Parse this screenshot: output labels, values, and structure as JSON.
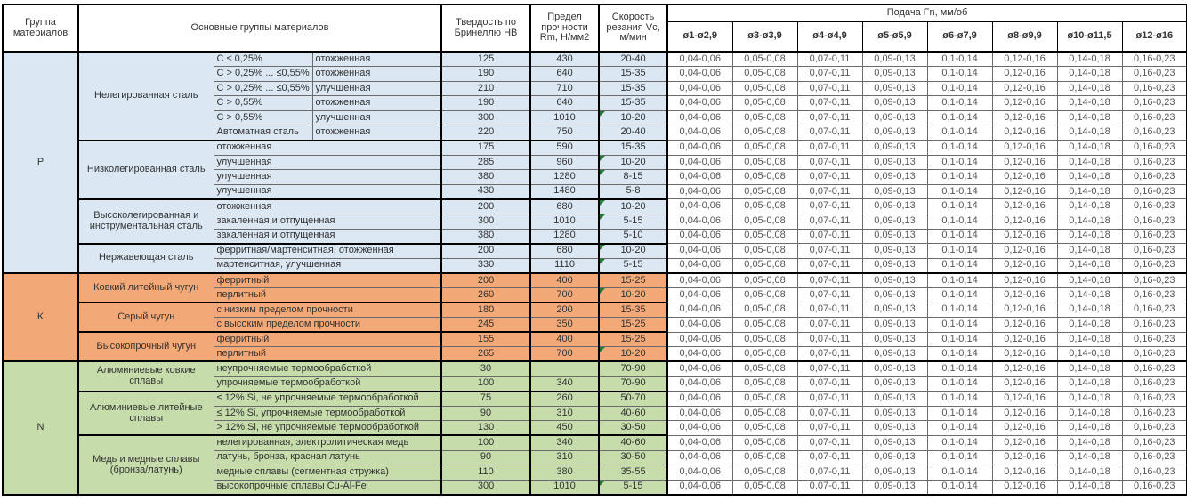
{
  "header": {
    "group": "Группа материалов",
    "material_groups": "Основные группы материалов",
    "hardness": "Твердость по Бринеллю HB",
    "strength": "Предел прочности Rm, Н/мм2",
    "speed": "Скорость резания Vc, м/мин",
    "feed": "Подача Fn, мм/об",
    "feed_cols": [
      "ø1-ø2,9",
      "ø3-ø3,9",
      "ø4-ø4,9",
      "ø5-ø5,9",
      "ø6-ø7,9",
      "ø8-ø9,9",
      "ø10-ø11,5",
      "ø12-ø16"
    ]
  },
  "feed_values": [
    "0,04-0,06",
    "0,05-0,08",
    "0,07-0,11",
    "0,09-0,13",
    "0,1-0,14",
    "0,12-0,16",
    "0,14-0,18",
    "0,16-0,23"
  ],
  "colors": {
    "p_blue": "#dbe7f3",
    "k_orange": "#f3a977",
    "n_green": "#c6dcab",
    "flag_green": "#1e7d33",
    "border_black": "#000000"
  },
  "groups": [
    {
      "code": "P",
      "color": "#dbe7f3",
      "families": [
        {
          "name": "Нелегированная сталь",
          "rows": [
            {
              "sub1": "C ≤ 0,25%",
              "sub2": "отожженная",
              "hb": "125",
              "rm": "430",
              "vc": "20-40"
            },
            {
              "sub1": "C > 0,25% ... ≤0,55%",
              "sub2": "отожженная",
              "hb": "190",
              "rm": "640",
              "vc": "15-35"
            },
            {
              "sub1": "C > 0,25% ... ≤0,55%",
              "sub2": "улучшенная",
              "hb": "210",
              "rm": "710",
              "vc": "15-35"
            },
            {
              "sub1": "C > 0,55%",
              "sub2": "отожженная",
              "hb": "190",
              "rm": "640",
              "vc": "15-35"
            },
            {
              "sub1": "C > 0,55%",
              "sub2": "улучшенная",
              "hb": "300",
              "rm": "1010",
              "vc": "10-20",
              "flag": true
            },
            {
              "sub1": "Автоматная сталь",
              "sub2": "отожженная",
              "hb": "220",
              "rm": "750",
              "vc": "20-40"
            }
          ]
        },
        {
          "name": "Низколегированная сталь",
          "rows": [
            {
              "desc": "отожженная",
              "hb": "175",
              "rm": "590",
              "vc": "15-35"
            },
            {
              "desc": "улучшенная",
              "hb": "285",
              "rm": "960",
              "vc": "10-20",
              "flag": true
            },
            {
              "desc": "улучшенная",
              "hb": "380",
              "rm": "1280",
              "vc": "8-15",
              "flag": true
            },
            {
              "desc": "улучшенная",
              "hb": "430",
              "rm": "1480",
              "vc": "5-8"
            }
          ]
        },
        {
          "name": "Высоколегированная и инструментальная сталь",
          "rows": [
            {
              "desc": "отожженная",
              "hb": "200",
              "rm": "680",
              "vc": "10-20",
              "flag": true
            },
            {
              "desc": "закаленная и отпущенная",
              "hb": "300",
              "rm": "1010",
              "vc": "5-15",
              "flag": true
            },
            {
              "desc": "закаленная и отпущенная",
              "hb": "380",
              "rm": "1280",
              "vc": "5-10"
            }
          ]
        },
        {
          "name": "Нержавеющая сталь",
          "rows": [
            {
              "desc": "ферритная/мартенситная, отожженная",
              "hb": "200",
              "rm": "680",
              "vc": "10-20",
              "flag": true
            },
            {
              "desc": "мартенситная, улучшенная",
              "hb": "330",
              "rm": "1110",
              "vc": "5-15",
              "flag": true
            }
          ]
        }
      ]
    },
    {
      "code": "K",
      "color": "#f3a977",
      "families": [
        {
          "name": "Ковкий литейный чугун",
          "rows": [
            {
              "desc": "ферритный",
              "hb": "200",
              "rm": "400",
              "vc": "15-25"
            },
            {
              "desc": "перлитный",
              "hb": "260",
              "rm": "700",
              "vc": "10-20",
              "flag": true
            }
          ]
        },
        {
          "name": "Серый чугун",
          "rows": [
            {
              "desc": "с низким пределом прочности",
              "hb": "180",
              "rm": "200",
              "vc": "15-35"
            },
            {
              "desc": "с высоким пределом прочности",
              "hb": "245",
              "rm": "350",
              "vc": "15-25"
            }
          ]
        },
        {
          "name": "Высокопрочный чугун",
          "rows": [
            {
              "desc": "ферритный",
              "hb": "155",
              "rm": "400",
              "vc": "15-25"
            },
            {
              "desc": "перлитный",
              "hb": "265",
              "rm": "700",
              "vc": "10-20",
              "flag": true
            }
          ]
        }
      ]
    },
    {
      "code": "N",
      "color": "#c6dcab",
      "families": [
        {
          "name": "Алюминиевые ковкие сплавы",
          "rows": [
            {
              "desc": "неупрочняемые термообработкой",
              "hb": "30",
              "rm": "",
              "vc": "70-90"
            },
            {
              "desc": "упрочняемые термообработкой",
              "hb": "100",
              "rm": "340",
              "vc": "70-90"
            }
          ]
        },
        {
          "name": "Алюминиевые литейные сплавы",
          "rows": [
            {
              "desc": "≤ 12% Si, не упрочняемые термообработкой",
              "hb": "75",
              "rm": "260",
              "vc": "50-70"
            },
            {
              "desc": "≤ 12% Si, упрочняемые термообработкой",
              "hb": "90",
              "rm": "310",
              "vc": "40-60"
            },
            {
              "desc": "> 12% Si, не упрочняемые термообработкой",
              "hb": "130",
              "rm": "450",
              "vc": "30-50"
            }
          ]
        },
        {
          "name": "Медь и медные сплавы (бронза/латунь)",
          "rows": [
            {
              "desc": "нелегированная, электролитическая медь",
              "hb": "100",
              "rm": "340",
              "vc": "40-60"
            },
            {
              "desc": "латунь, бронза, красная латунь",
              "hb": "90",
              "rm": "310",
              "vc": "30-50"
            },
            {
              "desc": "медные сплавы (сегментная стружка)",
              "hb": "110",
              "rm": "380",
              "vc": "35-55"
            },
            {
              "desc": "высокопрочные сплавы Cu-Al-Fe",
              "hb": "300",
              "rm": "1010",
              "vc": "5-15",
              "flag": true
            }
          ]
        }
      ]
    }
  ]
}
